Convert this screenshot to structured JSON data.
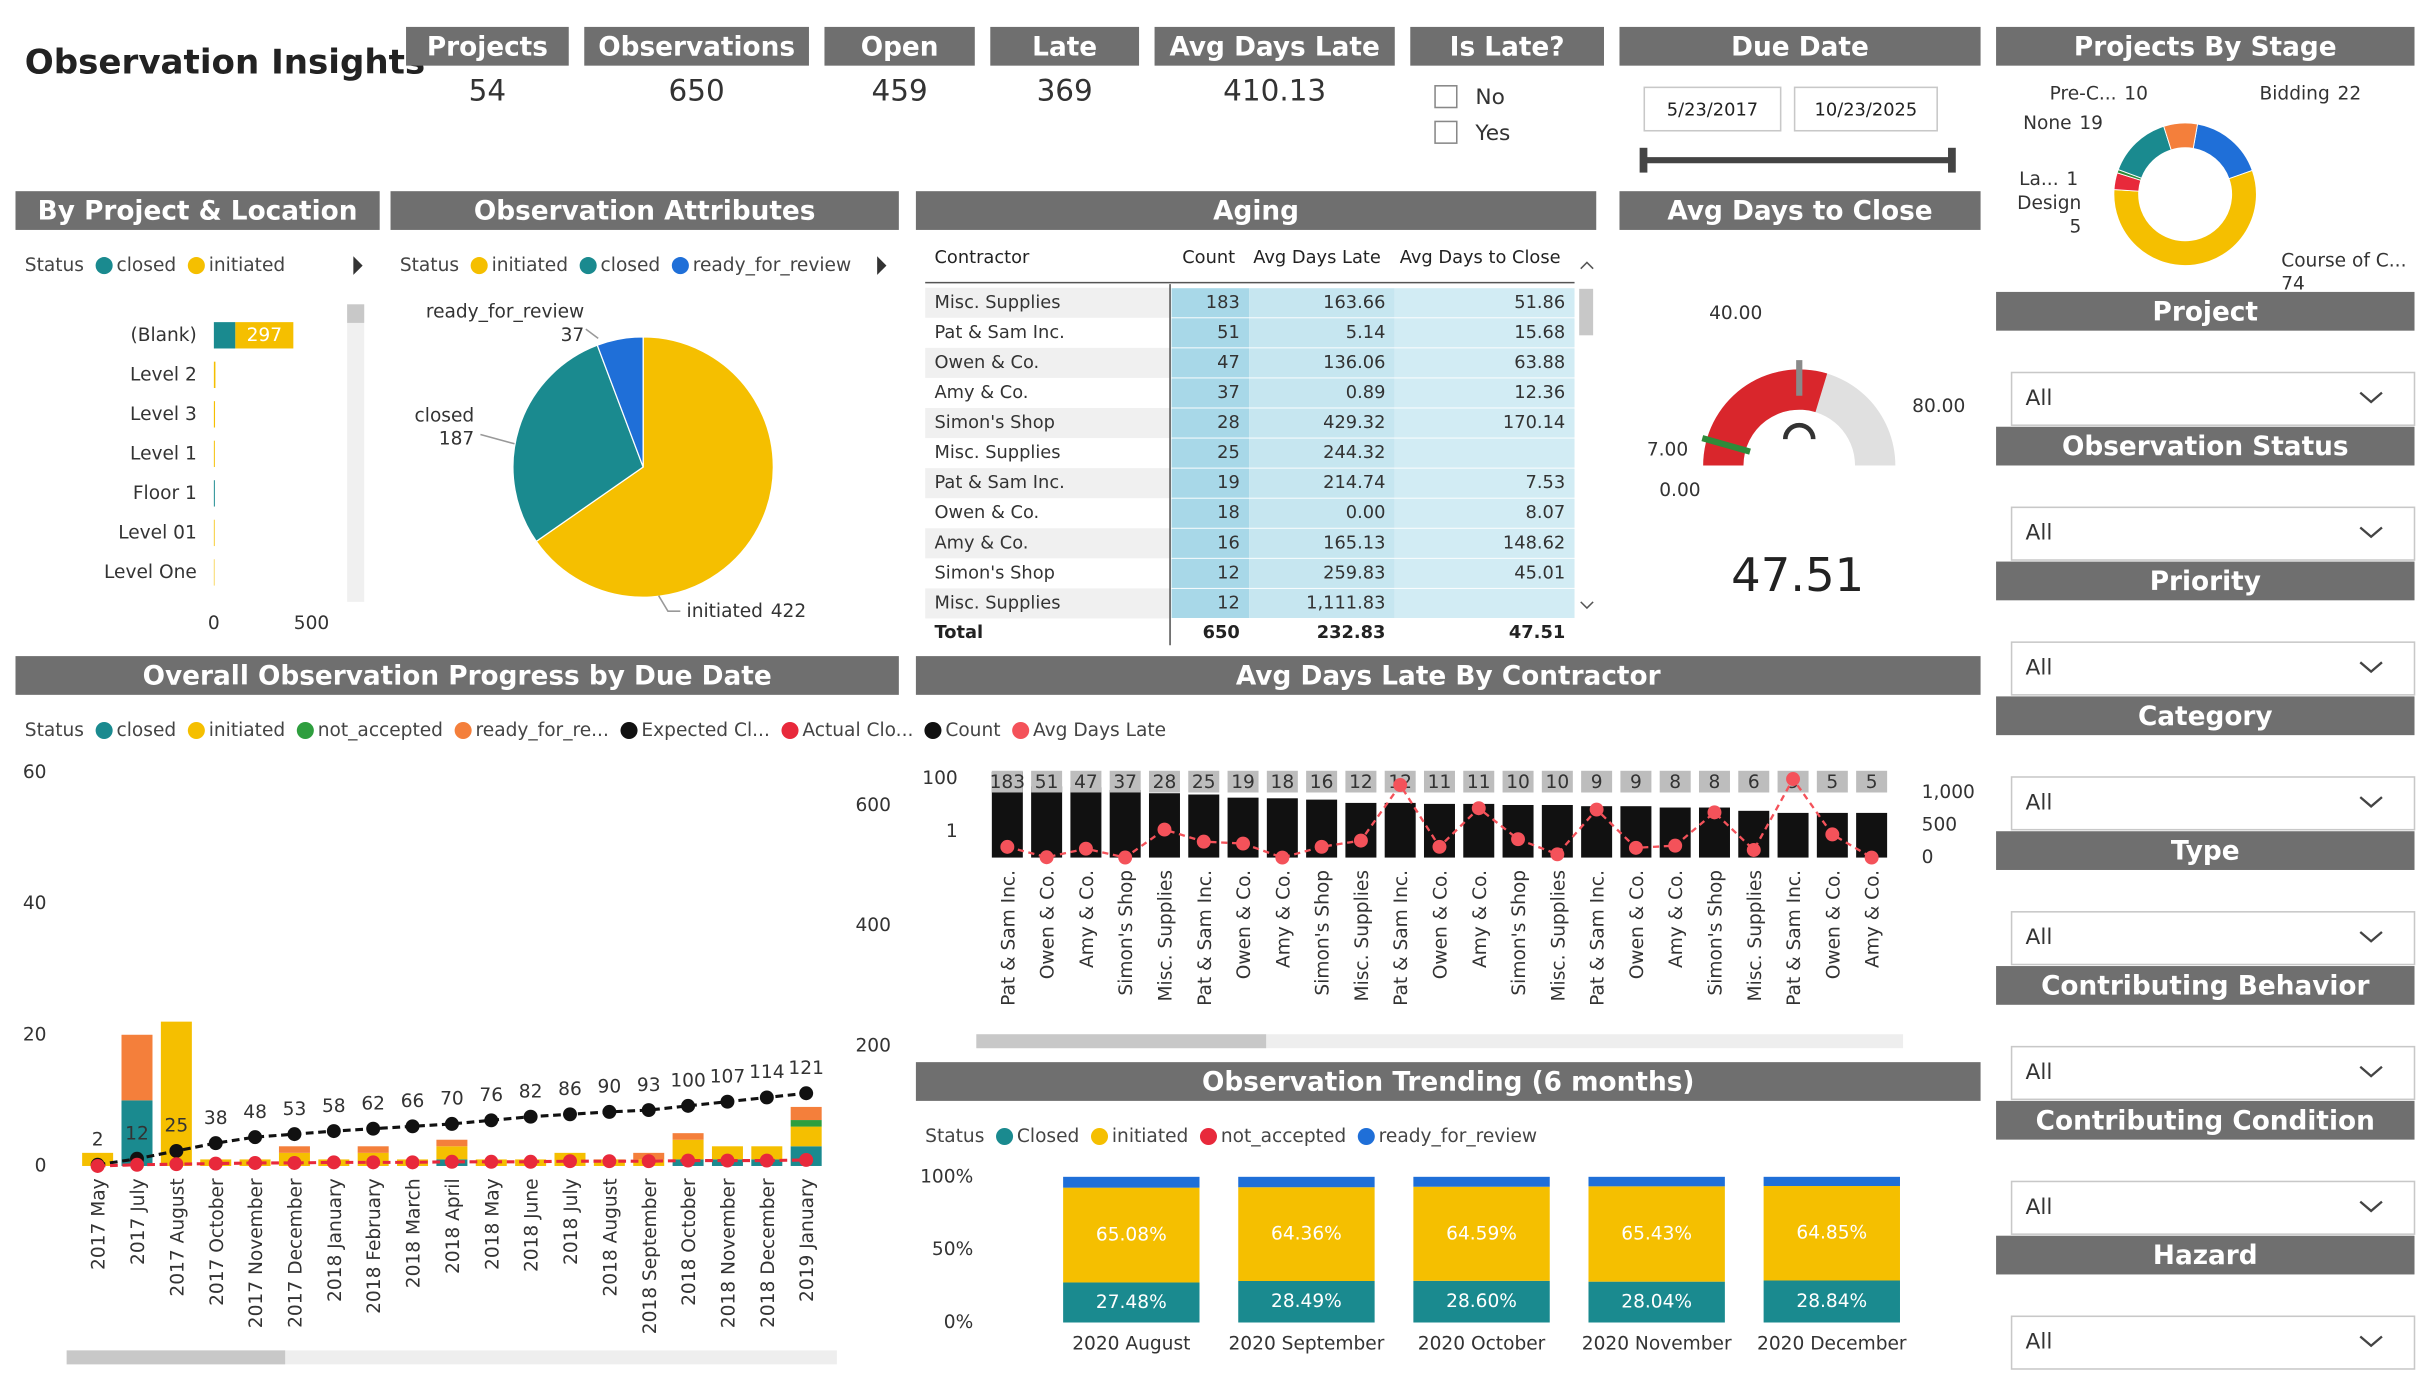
{
  "header": {
    "title": "Observation Insights"
  },
  "kpis": [
    {
      "label": "Projects",
      "value": 54,
      "color": "#252423"
    },
    {
      "label": "Observations",
      "value": 650,
      "color": "#252423"
    },
    {
      "label": "Open",
      "value": 459,
      "color": "#252423"
    },
    {
      "label": "Late",
      "value": 369,
      "color": "#d3232a"
    },
    {
      "label": "Avg Days Late",
      "value": 410.13,
      "color": "#d3232a"
    }
  ],
  "is_late": {
    "title": "Is Late?",
    "options": [
      "No",
      "Yes"
    ]
  },
  "due_date": {
    "title": "Due Date",
    "start": "5/23/2017",
    "end": "10/23/2025"
  },
  "slicers": [
    {
      "title": "Project",
      "value": "All"
    },
    {
      "title": "Observation Status",
      "value": "All"
    },
    {
      "title": "Priority",
      "value": "All"
    },
    {
      "title": "Category",
      "value": "All"
    },
    {
      "title": "Type",
      "value": "All"
    },
    {
      "title": "Contributing Behavior",
      "value": "All"
    },
    {
      "title": "Contributing Condition",
      "value": "All"
    },
    {
      "title": "Hazard",
      "value": "All"
    }
  ],
  "charts": {
    "stage": {
      "type": "donut",
      "title": "Projects By Stage",
      "categories": [
        "Bidding",
        "Course of C...",
        "Design",
        "La...",
        "None",
        "Pre-C..."
      ],
      "values": [
        22,
        74,
        5,
        1,
        19,
        10
      ],
      "colors": [
        "#1f6fd8",
        "#f5bf00",
        "#e8293b",
        "#2e8b3a",
        "#1a8a8f",
        "#f47f3b"
      ]
    },
    "by_project": {
      "type": "hbar_stacked",
      "title": "By Project & Location",
      "legend_title": "Status",
      "categories": [
        "(Blank)",
        "Level 2",
        "Level 3",
        "Level 1",
        "Floor 1",
        "Level 01",
        "Level One"
      ],
      "series": [
        {
          "name": "closed",
          "color": "#1a8a8f",
          "values": [
            110,
            0,
            0,
            0,
            5,
            0,
            0
          ]
        },
        {
          "name": "initiated",
          "color": "#f5bf00",
          "values": [
            297,
            8,
            6,
            5,
            0,
            4,
            3
          ]
        }
      ],
      "xlim": [
        0,
        500
      ],
      "xticks": [
        0,
        500
      ]
    },
    "attributes": {
      "type": "pie",
      "title": "Observation Attributes",
      "legend_title": "Status",
      "series": [
        {
          "name": "initiated",
          "color": "#f5bf00",
          "value": 422
        },
        {
          "name": "closed",
          "color": "#1a8a8f",
          "value": 187
        },
        {
          "name": "ready_for_review",
          "color": "#1f6fd8",
          "value": 37
        }
      ]
    },
    "aging": {
      "type": "table",
      "title": "Aging",
      "columns": [
        "Contractor",
        "Count",
        "Avg Days Late",
        "Avg Days to Close"
      ],
      "rows": [
        [
          "Misc. Supplies",
          "183",
          "163.66",
          "51.86"
        ],
        [
          "Pat & Sam Inc.",
          "51",
          "5.14",
          "15.68"
        ],
        [
          "Owen & Co.",
          "47",
          "136.06",
          "63.88"
        ],
        [
          "Amy & Co.",
          "37",
          "0.89",
          "12.36"
        ],
        [
          "Simon's Shop",
          "28",
          "429.32",
          "170.14"
        ],
        [
          "Misc. Supplies",
          "25",
          "244.32",
          null
        ],
        [
          "Pat & Sam Inc.",
          "19",
          "214.74",
          "7.53"
        ],
        [
          "Owen & Co.",
          "18",
          "0.00",
          "8.07"
        ],
        [
          "Amy & Co.",
          "16",
          "165.13",
          "148.62"
        ],
        [
          "Simon's Shop",
          "12",
          "259.83",
          "45.01"
        ],
        [
          "Misc. Supplies",
          "12",
          "1,111.83",
          null
        ]
      ],
      "total": [
        "Total",
        "650",
        "232.83",
        "47.51"
      ]
    },
    "close_gauge": {
      "type": "gauge",
      "title": "Avg Days to Close",
      "min": {
        "value": 0,
        "label": "0.00"
      },
      "max": {
        "value": 80,
        "label": "80.00"
      },
      "target": {
        "value": 7,
        "label": "7.00"
      },
      "marker": {
        "value": 40,
        "label": "40.00"
      },
      "value": 47.51,
      "color": "#d9262c",
      "target_color": "#2e8b3a"
    },
    "progress": {
      "type": "combo",
      "title": "Overall Observation Progress by Due Date",
      "legend_title": "Status",
      "categories": [
        "2017 May",
        "2017 July",
        "2017 August",
        "2017 October",
        "2017 November",
        "2017 December",
        "2018 January",
        "2018 February",
        "2018 March",
        "2018 April",
        "2018 May",
        "2018 June",
        "2018 July",
        "2018 August",
        "2018 September",
        "2018 October",
        "2018 November",
        "2018 December",
        "2019 January"
      ],
      "series": [
        {
          "name": "closed",
          "color": "#1a8a8f",
          "values": [
            0,
            10,
            0,
            0,
            0,
            0,
            0,
            0,
            0,
            1,
            0,
            0,
            0,
            0,
            0,
            1,
            1,
            1,
            3
          ]
        },
        {
          "name": "initiated",
          "color": "#f5bf00",
          "values": [
            2,
            0,
            22,
            1,
            1,
            2,
            1,
            2,
            1,
            2,
            1,
            1,
            2,
            1,
            1,
            3,
            2,
            2,
            3
          ]
        },
        {
          "name": "not_accepted",
          "color": "#2e9e3e",
          "values": [
            0,
            0,
            0,
            0,
            0,
            0,
            0,
            0,
            0,
            0,
            0,
            0,
            0,
            0,
            0,
            0,
            0,
            0,
            1
          ]
        },
        {
          "name": "ready_for_re...",
          "color": "#f47f3b",
          "values": [
            0,
            10,
            0,
            0,
            0,
            1,
            0,
            1,
            0,
            1,
            0,
            0,
            0,
            0,
            1,
            1,
            0,
            0,
            2
          ]
        },
        {
          "name": "Expected Cl...",
          "color": "#111111",
          "axis": "y2",
          "values": [
            2,
            12,
            25,
            38,
            48,
            53,
            58,
            62,
            66,
            70,
            76,
            82,
            86,
            90,
            93,
            100,
            107,
            114,
            121
          ]
        },
        {
          "name": "Actual Clo...",
          "color": "#e8293b",
          "axis": "y2",
          "values": [
            0,
            2,
            3,
            4,
            5,
            5,
            6,
            6,
            6,
            7,
            7,
            7,
            8,
            8,
            8,
            9,
            9,
            9,
            10
          ]
        }
      ],
      "ylim": [
        0,
        60
      ],
      "yticks": [
        0,
        20,
        40,
        60
      ],
      "y2lim": [
        0,
        655
      ],
      "y2ticks": [
        200,
        400,
        600
      ]
    },
    "late_by_contractor": {
      "type": "combo",
      "title": "Avg Days Late By Contractor",
      "categories": [
        "Pat & Sam Inc.",
        "Owen & Co.",
        "Amy & Co.",
        "Simon's Shop",
        "Misc. Supplies",
        "Pat & Sam Inc.",
        "Owen & Co.",
        "Amy & Co.",
        "Simon's Shop",
        "Misc. Supplies",
        "Pat & Sam Inc.",
        "Owen & Co.",
        "Amy & Co.",
        "Simon's Shop",
        "Misc. Supplies",
        "Pat & Sam Inc.",
        "Owen & Co.",
        "Amy & Co.",
        "Simon's Shop",
        "Misc. Supplies",
        "Pat & Sam Inc.",
        "Owen & Co.",
        "Amy & Co."
      ],
      "series": [
        {
          "name": "Count",
          "color": "#111111",
          "values": [
            183,
            51,
            47,
            37,
            28,
            25,
            19,
            18,
            16,
            12,
            12,
            11,
            11,
            10,
            10,
            9,
            9,
            8,
            8,
            6,
            5,
            5,
            5
          ]
        },
        {
          "name": "Avg Days Late",
          "color": "#f4525a",
          "axis": "y2",
          "values": [
            164,
            5,
            136,
            1,
            429,
            244,
            215,
            0,
            165,
            260,
            1112,
            165,
            756,
            282,
            50,
            736,
            149,
            183,
            693,
            116,
            1204,
            355,
            0
          ]
        }
      ],
      "yscale": "log",
      "ylim": [
        0.1,
        200
      ],
      "yticks": [
        1,
        100
      ],
      "y2lim": [
        0,
        1330
      ],
      "y2ticks": [
        0,
        500,
        {
          "value": 1000,
          "label": "1,000"
        }
      ]
    },
    "trending": {
      "type": "bar_stacked_100",
      "title": "Observation Trending (6 months)",
      "legend_title": "Status",
      "categories": [
        "2020 August",
        "2020 September",
        "2020 October",
        "2020 November",
        "2020 December"
      ],
      "series": [
        {
          "name": "Closed",
          "color": "#1a8a8f",
          "values": [
            27.48,
            28.49,
            28.6,
            28.04,
            28.84
          ],
          "value_labels": [
            "27.48%",
            "28.49%",
            "28.60%",
            "28.04%",
            "28.84%"
          ]
        },
        {
          "name": "initiated",
          "color": "#f5bf00",
          "values": [
            65.08,
            64.36,
            64.59,
            65.43,
            64.85
          ],
          "value_labels": [
            "65.08%",
            "64.36%",
            "64.59%",
            "65.43%",
            "64.85%"
          ]
        },
        {
          "name": "not_accepted",
          "color": "#e8293b",
          "values": [
            0,
            0,
            0,
            0,
            0
          ]
        },
        {
          "name": "ready_for_review",
          "color": "#1f6fd8",
          "values": [
            7.44,
            7.15,
            6.81,
            6.53,
            6.31
          ]
        }
      ],
      "ylim": [
        0,
        100
      ],
      "yticks": [
        {
          "value": 0,
          "label": "0%"
        },
        {
          "value": 50,
          "label": "50%"
        },
        {
          "value": 100,
          "label": "100%"
        }
      ]
    }
  }
}
